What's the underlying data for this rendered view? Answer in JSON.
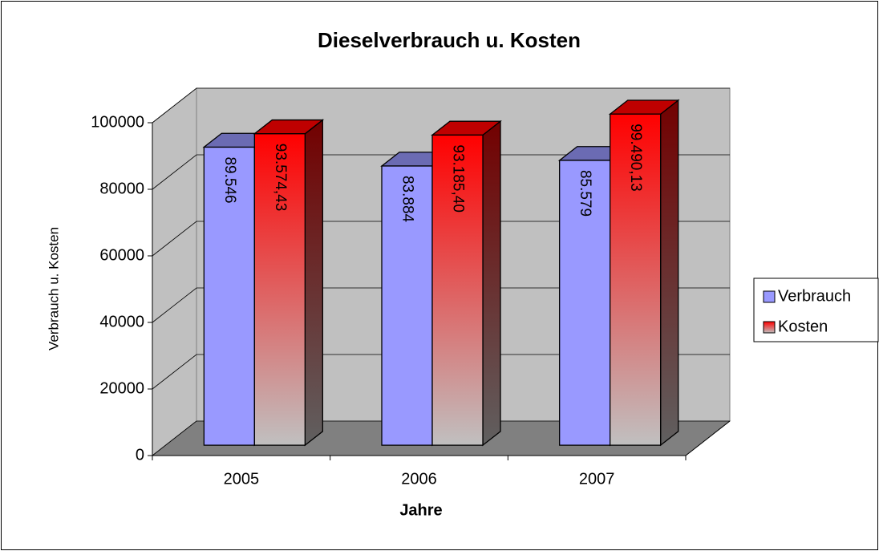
{
  "chart_data": {
    "type": "bar3d",
    "title": "Dieselverbrauch u. Kosten",
    "x_label": "Jahre",
    "y_label": "Verbrauch u. Kosten",
    "categories": [
      "2005",
      "2006",
      "2007"
    ],
    "series": [
      {
        "name": "Verbrauch",
        "color": "#9999ff",
        "values": [
          89546,
          83884,
          85579
        ],
        "value_labels": [
          "89.546",
          "83.884",
          "85.579"
        ]
      },
      {
        "name": "Kosten",
        "color": "#ff0000",
        "values": [
          93574.43,
          93185.4,
          99490.13
        ],
        "value_labels": [
          "93.574,43",
          "93.185,40",
          "99.490,13"
        ]
      }
    ],
    "ylim": [
      0,
      100000
    ],
    "yticks": [
      0,
      20000,
      40000,
      60000,
      80000,
      100000
    ],
    "grid": true,
    "legend": "right"
  }
}
